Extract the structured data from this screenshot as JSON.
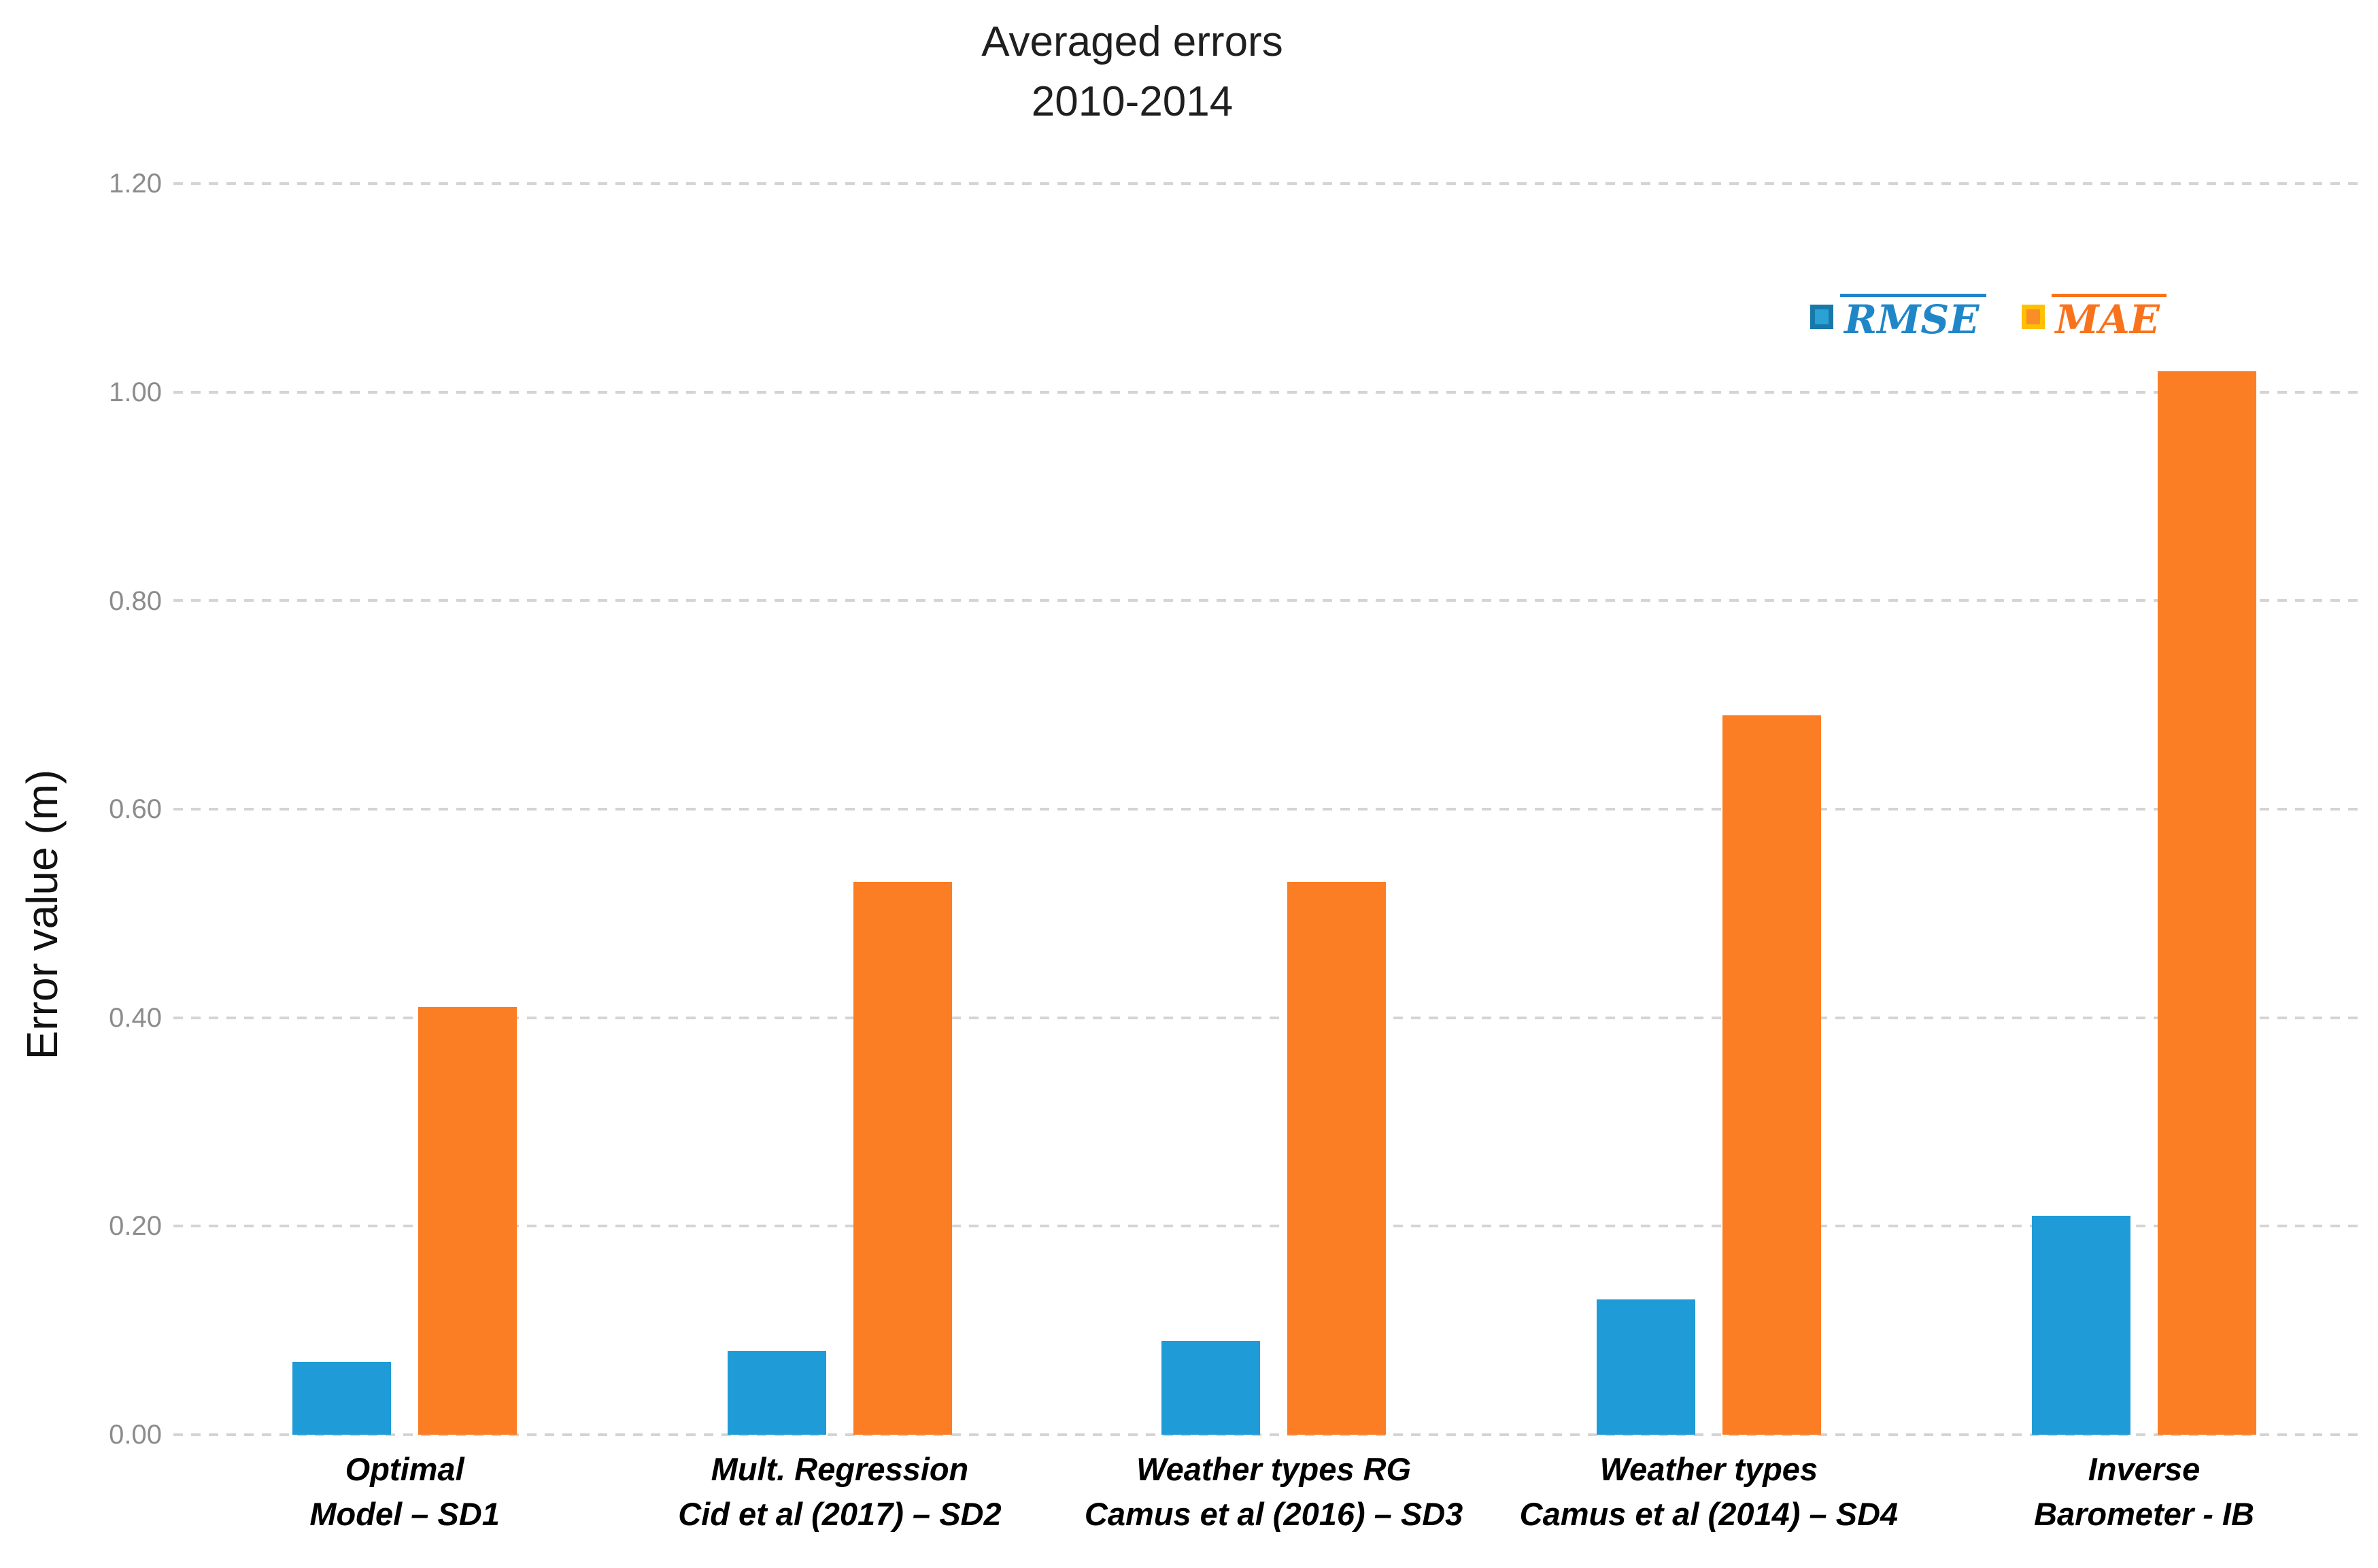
{
  "title": {
    "line1": "Averaged errors",
    "line2": "2010-2014"
  },
  "y_axis": {
    "title": "Error value (m)",
    "ticks": [
      "1.20",
      "1.00",
      "0.80",
      "0.60",
      "0.40",
      "0.20",
      "0.00"
    ]
  },
  "legend": [
    {
      "label": "RMSE",
      "marker_fill": "#2AA2D6",
      "marker_border": "#1879A9",
      "text_color": "#1F86C8"
    },
    {
      "label": "MAE",
      "marker_fill": "#FB8D28",
      "marker_border": "#FFC000",
      "text_color": "#F9731C"
    }
  ],
  "colors": {
    "rmse_bar": "#1F9BD7",
    "mae_bar": "#FC7E24",
    "gridline": "#D4D4D4",
    "tick_text": "#8C8C8C",
    "title_text": "#1F1F1F",
    "background": "#FFFFFF"
  },
  "chart_data": {
    "type": "bar",
    "title": "Averaged errors 2010-2014",
    "ylabel": "Error value (m)",
    "xlabel": "",
    "ylim": [
      0,
      1.2
    ],
    "ytick_step": 0.2,
    "grid": "horizontal-dashed",
    "legend_position": "inside-top-right",
    "categories": [
      "Optimal Model – SD1",
      "Mult. Regression Cid et al (2017) – SD2",
      "Weather types RG Camus et al (2016) – SD3",
      "Weather types Camus et al (2014) – SD4",
      "Inverse Barometer - IB"
    ],
    "categories_display": [
      {
        "line1": "Optimal",
        "line2": "Model – SD1"
      },
      {
        "line1": "Mult. Regression",
        "line2": "Cid et al (2017) – SD2"
      },
      {
        "line1": "Weather types RG",
        "line2": "Camus et al (2016) – SD3"
      },
      {
        "line1": "Weather types",
        "line2": "Camus et al (2014) – SD4"
      },
      {
        "line1": "Inverse",
        "line2": "Barometer - IB"
      }
    ],
    "series": [
      {
        "name": "RMSE",
        "color": "#1F9BD7",
        "values": [
          0.07,
          0.08,
          0.09,
          0.13,
          0.21
        ]
      },
      {
        "name": "MAE",
        "color": "#FC7E24",
        "values": [
          0.41,
          0.53,
          0.53,
          0.69,
          1.02
        ]
      }
    ]
  }
}
